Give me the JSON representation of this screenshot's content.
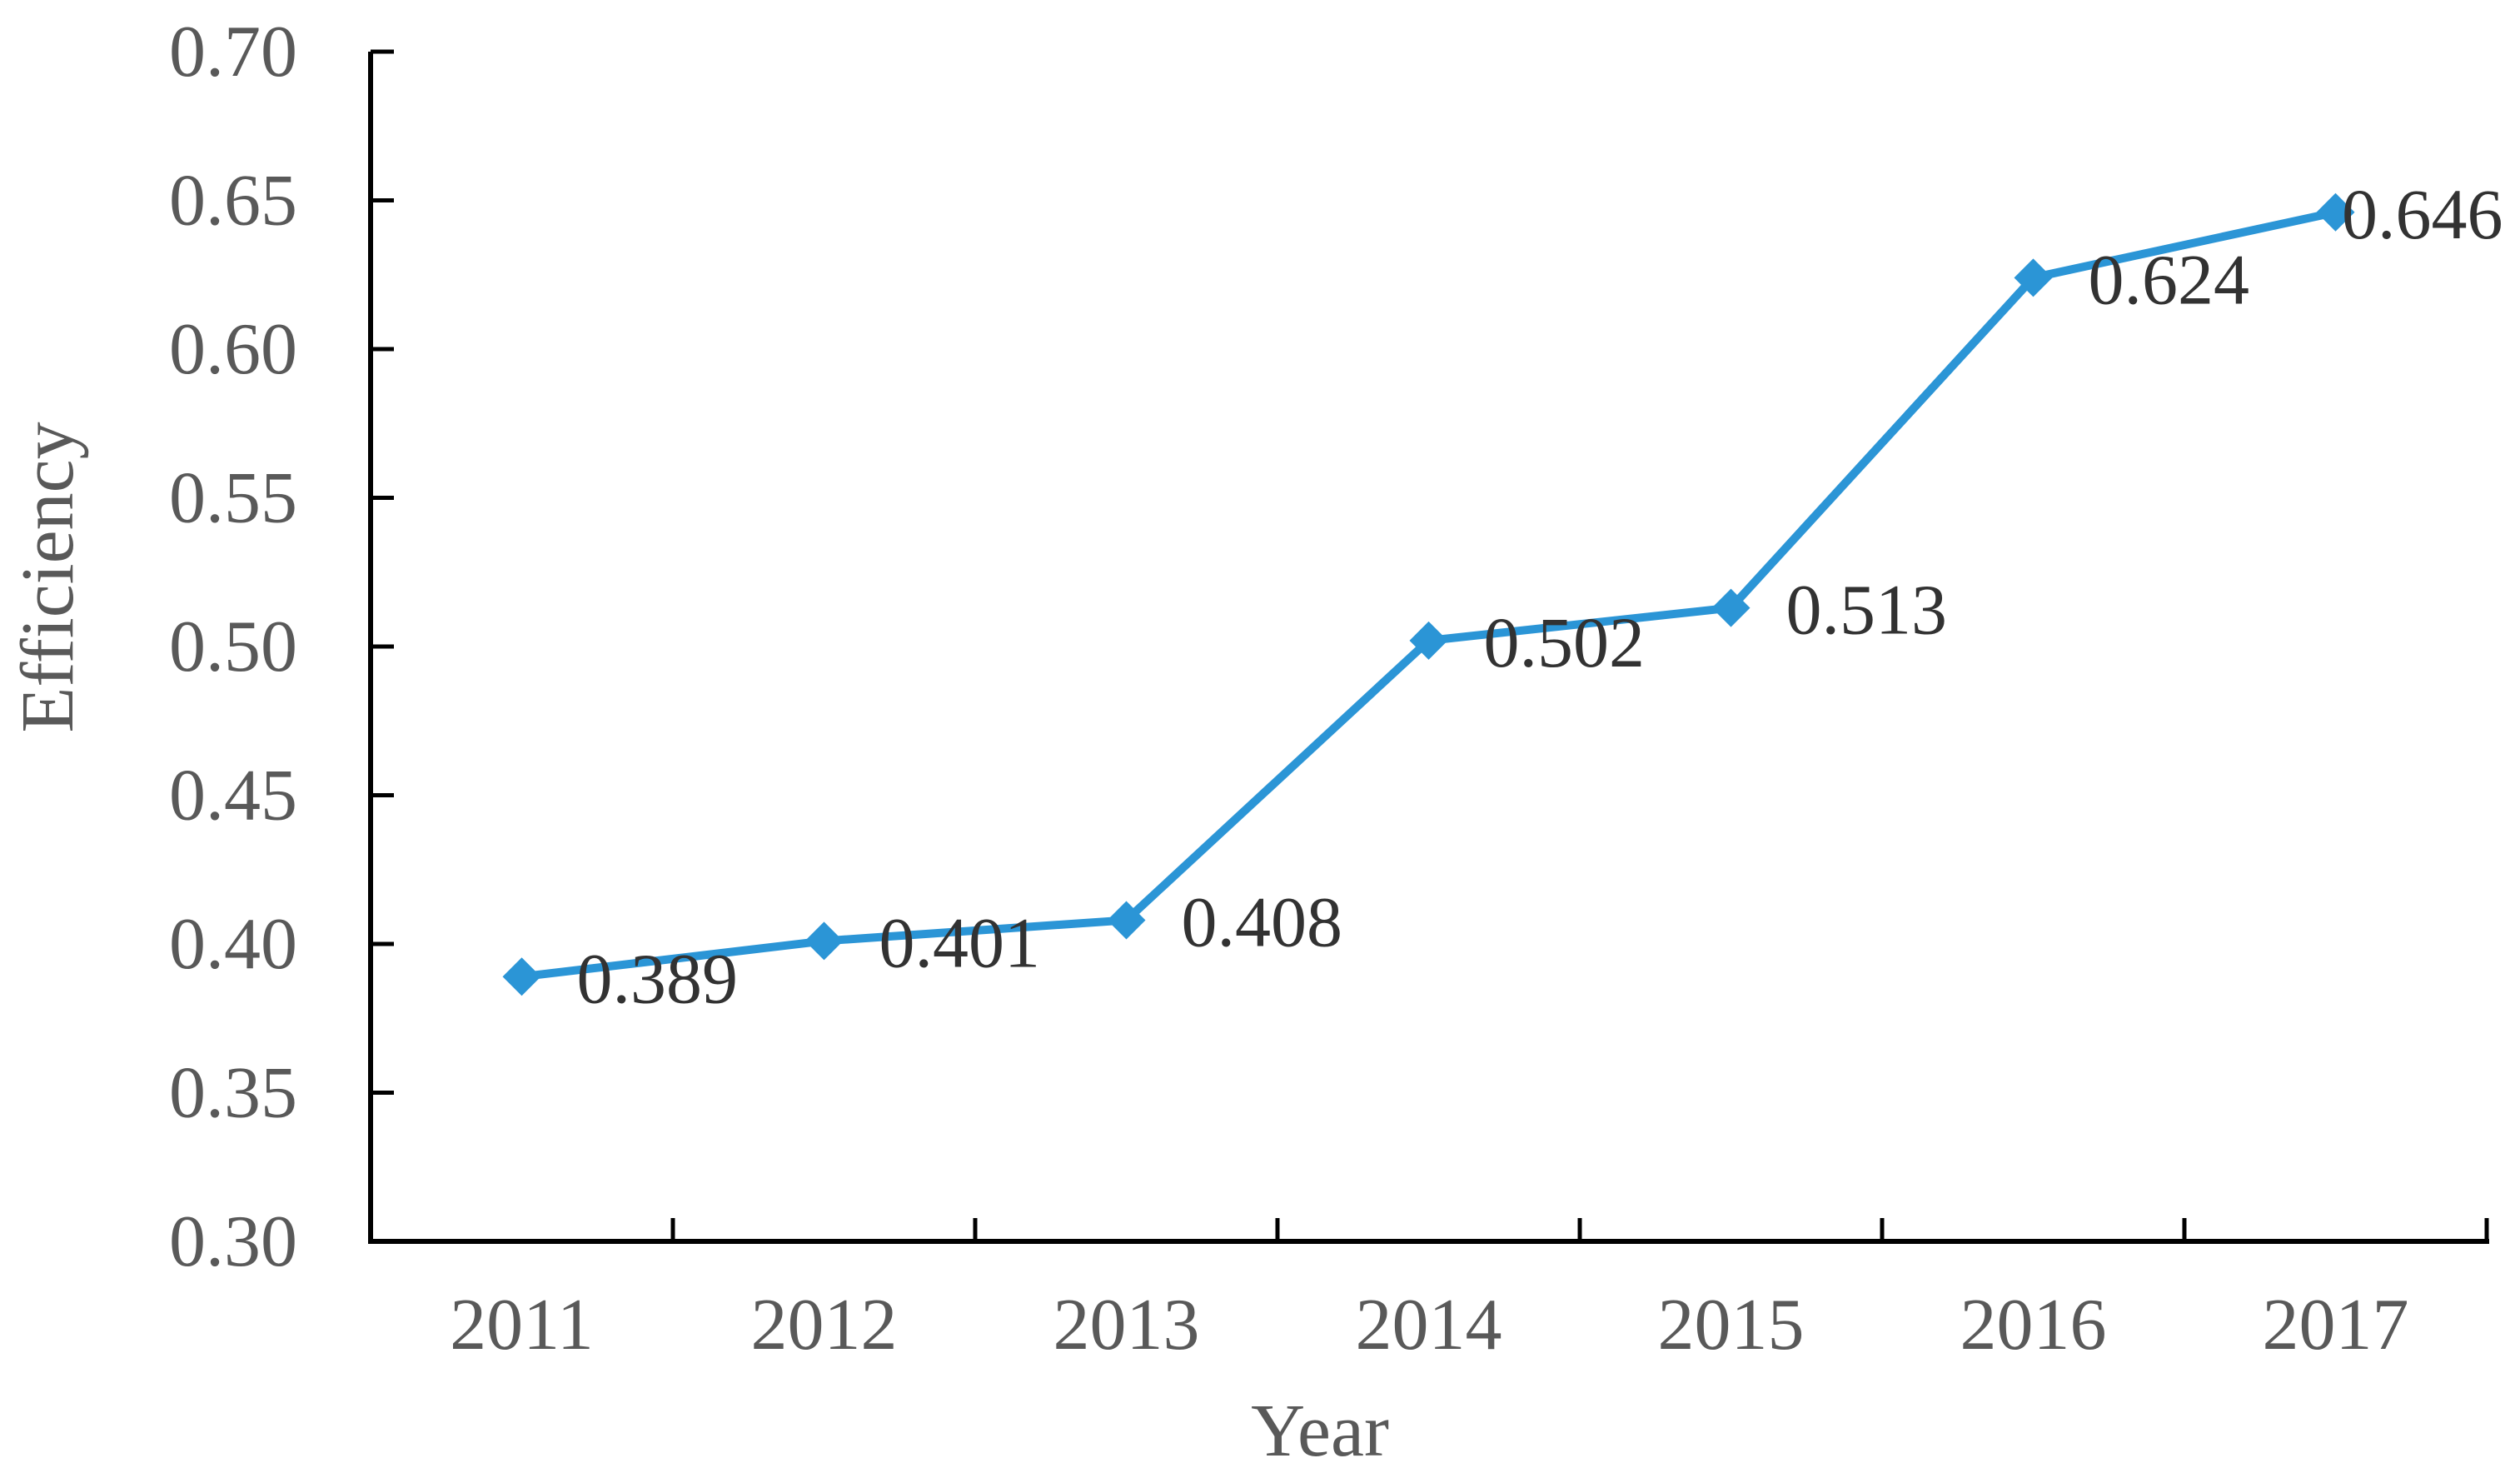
{
  "chart_data": {
    "type": "line",
    "title": "",
    "xlabel": "Year",
    "ylabel": "Efficiency",
    "categories": [
      "2011",
      "2012",
      "2013",
      "2014",
      "2015",
      "2016",
      "2017"
    ],
    "series": [
      {
        "name": "Efficiency",
        "values": [
          0.389,
          0.401,
          0.408,
          0.502,
          0.513,
          0.624,
          0.646
        ],
        "data_labels": [
          "0.389",
          "0.401",
          "0.408",
          "0.502",
          "0.513",
          "0.624",
          "0.646"
        ],
        "marker": "diamond"
      }
    ],
    "ylim": [
      0.3,
      0.7
    ],
    "ytick_labels": [
      "0.30",
      "0.35",
      "0.40",
      "0.45",
      "0.50",
      "0.55",
      "0.60",
      "0.65",
      "0.70"
    ],
    "grid": "off",
    "legend": "none",
    "tick_style": "inside",
    "colors": {
      "line": "#2B95D6",
      "marker": "#2B95D6",
      "axis": "#000000",
      "tick_label": "#595959",
      "axis_title": "#595959",
      "data_label": "#323232",
      "background": "#FFFFFF"
    }
  }
}
